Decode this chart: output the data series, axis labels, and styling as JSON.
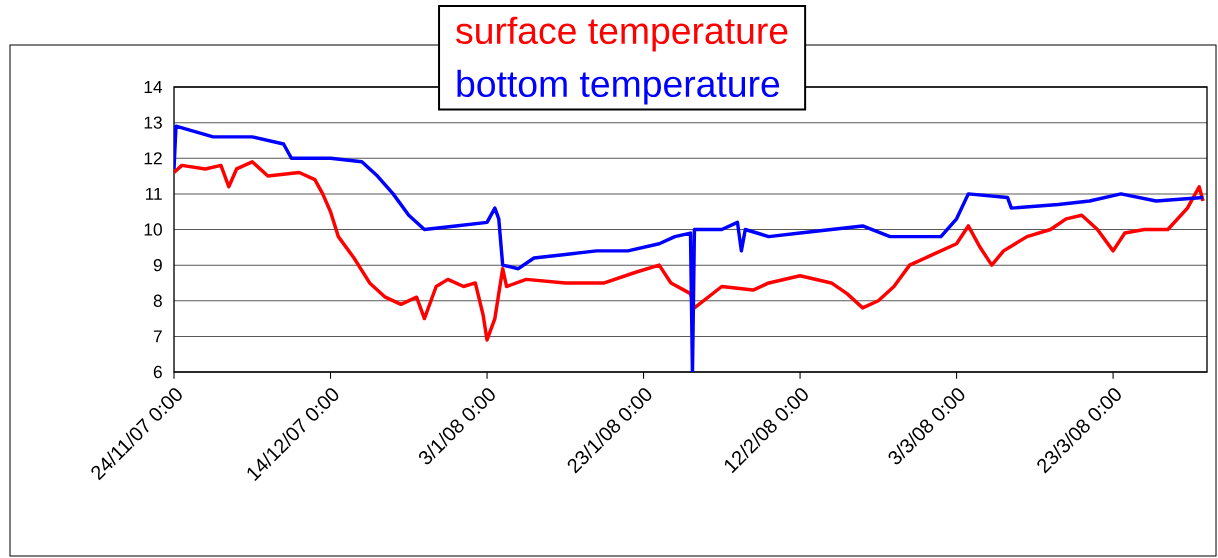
{
  "chart_data": {
    "type": "line",
    "series": [
      {
        "name": "surface temperature",
        "color": "#ff0000",
        "x": [
          "2007-11-24T00:00",
          "2007-11-25",
          "2007-11-28",
          "2007-11-30",
          "2007-12-01",
          "2007-12-02",
          "2007-12-04",
          "2007-12-06",
          "2007-12-10",
          "2007-12-12",
          "2007-12-13",
          "2007-12-14",
          "2007-12-15",
          "2007-12-17",
          "2007-12-19",
          "2007-12-21",
          "2007-12-23",
          "2007-12-25",
          "2007-12-26",
          "2007-12-27T12:00",
          "2007-12-29",
          "2007-12-31",
          "2008-01-01T12:00",
          "2008-01-02T12:00",
          "2008-01-03",
          "2008-01-04",
          "2008-01-05",
          "2008-01-05T12:00",
          "2008-01-08",
          "2008-01-13",
          "2008-01-18",
          "2008-01-22",
          "2008-01-25",
          "2008-01-26T12:00",
          "2008-01-29",
          "2008-01-29T12:00",
          "2008-02-02",
          "2008-02-06",
          "2008-02-08",
          "2008-02-12",
          "2008-02-16",
          "2008-02-18",
          "2008-02-20",
          "2008-02-22",
          "2008-02-24",
          "2008-02-26",
          "2008-02-29",
          "2008-03-03",
          "2008-03-04T12:00",
          "2008-03-06",
          "2008-03-07T12:00",
          "2008-03-09",
          "2008-03-12",
          "2008-03-15",
          "2008-03-17",
          "2008-03-19",
          "2008-03-21",
          "2008-03-23",
          "2008-03-24T12:00",
          "2008-03-27",
          "2008-03-30",
          "2008-04-01T12:00",
          "2008-04-03",
          "2008-04-03T12:00"
        ],
        "values": [
          11.6,
          11.8,
          11.7,
          11.8,
          11.2,
          11.7,
          11.9,
          11.5,
          11.6,
          11.4,
          11.0,
          10.5,
          9.8,
          9.2,
          8.5,
          8.1,
          7.9,
          8.1,
          7.5,
          8.4,
          8.6,
          8.4,
          8.5,
          7.6,
          6.9,
          7.5,
          8.9,
          8.4,
          8.6,
          8.5,
          8.5,
          8.8,
          9.0,
          8.5,
          8.2,
          7.8,
          8.4,
          8.3,
          8.5,
          8.7,
          8.5,
          8.2,
          7.8,
          8.0,
          8.4,
          9.0,
          9.3,
          9.6,
          10.1,
          9.5,
          9.0,
          9.4,
          9.8,
          10.0,
          10.3,
          10.4,
          10.0,
          9.4,
          9.9,
          10.0,
          10.0,
          10.6,
          11.2,
          10.8
        ]
      },
      {
        "name": "bottom temperature",
        "color": "#0000ff",
        "x": [
          "2007-11-24T00:00",
          "2007-11-24T06:00",
          "2007-11-29",
          "2007-12-04",
          "2007-12-08",
          "2007-12-09",
          "2007-12-14",
          "2007-12-18",
          "2007-12-20",
          "2007-12-22",
          "2007-12-24",
          "2007-12-26",
          "2007-12-30",
          "2008-01-03",
          "2008-01-04",
          "2008-01-04T12:00",
          "2008-01-05",
          "2008-01-07",
          "2008-01-09",
          "2008-01-13",
          "2008-01-17",
          "2008-01-21",
          "2008-01-25",
          "2008-01-27",
          "2008-01-29",
          "2008-01-29T06:00",
          "2008-01-29T12:00",
          "2008-02-02",
          "2008-02-04",
          "2008-02-04T12:00",
          "2008-02-05",
          "2008-02-08",
          "2008-02-12",
          "2008-02-16",
          "2008-02-20",
          "2008-02-23T12:00",
          "2008-03-01",
          "2008-03-03",
          "2008-03-04T12:00",
          "2008-03-09T12:00",
          "2008-03-10",
          "2008-03-16",
          "2008-03-20",
          "2008-03-24",
          "2008-03-28T12:00",
          "2008-04-03T12:00"
        ],
        "values": [
          11.7,
          12.9,
          12.6,
          12.6,
          12.4,
          12.0,
          12.0,
          11.9,
          11.5,
          11.0,
          10.4,
          10.0,
          10.1,
          10.2,
          10.6,
          10.3,
          9.0,
          8.9,
          9.2,
          9.3,
          9.4,
          9.4,
          9.6,
          9.8,
          9.9,
          6.0,
          10.0,
          10.0,
          10.2,
          9.4,
          10.0,
          9.8,
          9.9,
          10.0,
          10.1,
          9.8,
          9.8,
          10.3,
          11.0,
          10.9,
          10.6,
          10.7,
          10.8,
          11.0,
          10.8,
          10.9
        ]
      }
    ],
    "xlim": [
      "2007-11-24T00:00",
      "2008-04-04T00:00"
    ],
    "xticks": [
      {
        "value": "2007-11-24T00:00",
        "label": "24/11/07 0:00"
      },
      {
        "value": "2007-12-14T00:00",
        "label": "14/12/07 0:00"
      },
      {
        "value": "2008-01-03T00:00",
        "label": "3/1/08 0:00"
      },
      {
        "value": "2008-01-23T00:00",
        "label": "23/1/08 0:00"
      },
      {
        "value": "2008-02-12T00:00",
        "label": "12/2/08 0:00"
      },
      {
        "value": "2008-03-03T00:00",
        "label": "3/3/08 0:00"
      },
      {
        "value": "2008-03-23T00:00",
        "label": "23/3/08 0:00"
      }
    ],
    "ylim": [
      6,
      14
    ],
    "yticks": [
      6,
      7,
      8,
      9,
      10,
      11,
      12,
      13,
      14
    ],
    "grid": "y",
    "legend": "top",
    "marker": "none",
    "line_style": "solid"
  }
}
